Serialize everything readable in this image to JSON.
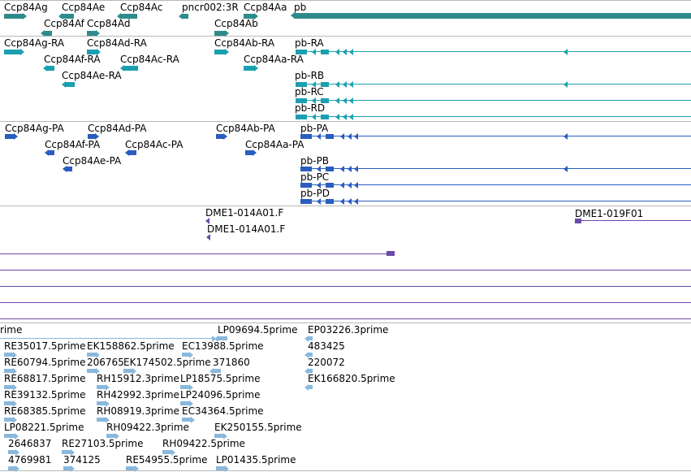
{
  "colors": {
    "gene": "#2e8b8b",
    "rna": "#1aa0b0",
    "protein": "#2a5dbf",
    "clone": "#6a4aa8",
    "est": "#8ab8dc",
    "separator": "#b8b8b8"
  },
  "tracks": {
    "genes": {
      "features": [
        {
          "label": "Ccp84Ag",
          "strand": "+"
        },
        {
          "label": "Ccp84Ae",
          "strand": "-"
        },
        {
          "label": "Ccp84Ac",
          "strand": "-"
        },
        {
          "label": "pncr002:3R",
          "strand": "-"
        },
        {
          "label": "Ccp84Aa",
          "strand": "+"
        },
        {
          "label": "pb",
          "strand": "-"
        },
        {
          "label": "Ccp84Af",
          "strand": "-"
        },
        {
          "label": "Ccp84Ad",
          "strand": "+"
        },
        {
          "label": "Ccp84Ab",
          "strand": "+"
        }
      ]
    },
    "transcripts": {
      "features": [
        {
          "label": "Ccp84Ag-RA"
        },
        {
          "label": "Ccp84Ad-RA"
        },
        {
          "label": "Ccp84Ab-RA"
        },
        {
          "label": "pb-RA"
        },
        {
          "label": "Ccp84Af-RA"
        },
        {
          "label": "Ccp84Ac-RA"
        },
        {
          "label": "Ccp84Aa-RA"
        },
        {
          "label": "Ccp84Ae-RA"
        },
        {
          "label": "pb-RB"
        },
        {
          "label": "pb-RC"
        },
        {
          "label": "pb-RD"
        }
      ]
    },
    "proteins": {
      "features": [
        {
          "label": "Ccp84Ag-PA"
        },
        {
          "label": "Ccp84Ad-PA"
        },
        {
          "label": "Ccp84Ab-PA"
        },
        {
          "label": "pb-PA"
        },
        {
          "label": "Ccp84Af-PA"
        },
        {
          "label": "Ccp84Ac-PA"
        },
        {
          "label": "Ccp84Aa-PA"
        },
        {
          "label": "Ccp84Ae-PA"
        },
        {
          "label": "pb-PB"
        },
        {
          "label": "pb-PC"
        },
        {
          "label": "pb-PD"
        }
      ]
    },
    "clones": {
      "features": [
        {
          "label": "DME1-014A01.F"
        },
        {
          "label": "DME1-019F01"
        },
        {
          "label": "DME1-014A01.F"
        }
      ]
    },
    "ests": {
      "features": [
        {
          "label": "rime"
        },
        {
          "label": "LP09694.5prime"
        },
        {
          "label": "EP03226.3prime"
        },
        {
          "label": "RE35017.5prime"
        },
        {
          "label": "EK158862.5prime"
        },
        {
          "label": "EC13988.5prime"
        },
        {
          "label": "483425"
        },
        {
          "label": "RE60794.5prime"
        },
        {
          "label": "206765"
        },
        {
          "label": "EK174502.5prime"
        },
        {
          "label": "371860"
        },
        {
          "label": "220072"
        },
        {
          "label": "RE68817.5prime"
        },
        {
          "label": "RH15912.3prime"
        },
        {
          "label": "LP18575.5prime"
        },
        {
          "label": "EK166820.5prime"
        },
        {
          "label": "RE39132.5prime"
        },
        {
          "label": "RH42992.3prime"
        },
        {
          "label": "LP24096.5prime"
        },
        {
          "label": "RE68385.5prime"
        },
        {
          "label": "RH08919.3prime"
        },
        {
          "label": "EC34364.5prime"
        },
        {
          "label": "LP08221.5prime"
        },
        {
          "label": "RH09422.3prime"
        },
        {
          "label": "EK250155.5prime"
        },
        {
          "label": "2646837"
        },
        {
          "label": "RE27103.5prime"
        },
        {
          "label": "RH09422.5prime"
        },
        {
          "label": "4769981"
        },
        {
          "label": "374125"
        },
        {
          "label": "RE54955.5prime"
        },
        {
          "label": "LP01435.5prime"
        }
      ]
    }
  }
}
